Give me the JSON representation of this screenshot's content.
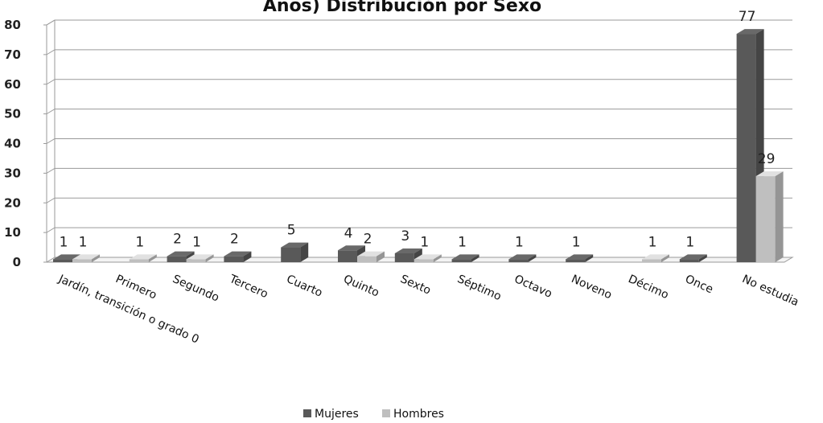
{
  "chart_data": {
    "type": "bar",
    "title": "Años) Distribución por Sexo",
    "xlabel": "",
    "ylabel": "",
    "ylim": [
      0,
      80
    ],
    "yticks": [
      0,
      10,
      20,
      30,
      40,
      50,
      60,
      70,
      80
    ],
    "grid": true,
    "legend": "bottom-center",
    "categories": [
      "Jardín, transición o grado 0",
      "Primero",
      "Segundo",
      "Tercero",
      "Cuarto",
      "Quinto",
      "Sexto",
      "Séptimo",
      "Octavo",
      "Noveno",
      "Décimo",
      "Once",
      "No estudia"
    ],
    "series": [
      {
        "name": "Mujeres",
        "color": "#595959",
        "values": [
          1,
          0,
          2,
          2,
          5,
          4,
          3,
          1,
          1,
          1,
          0,
          1,
          77
        ]
      },
      {
        "name": "Hombres",
        "color": "#BFBFBF",
        "values": [
          1,
          1,
          1,
          0,
          0,
          2,
          1,
          0,
          0,
          0,
          1,
          0,
          29
        ]
      }
    ]
  }
}
